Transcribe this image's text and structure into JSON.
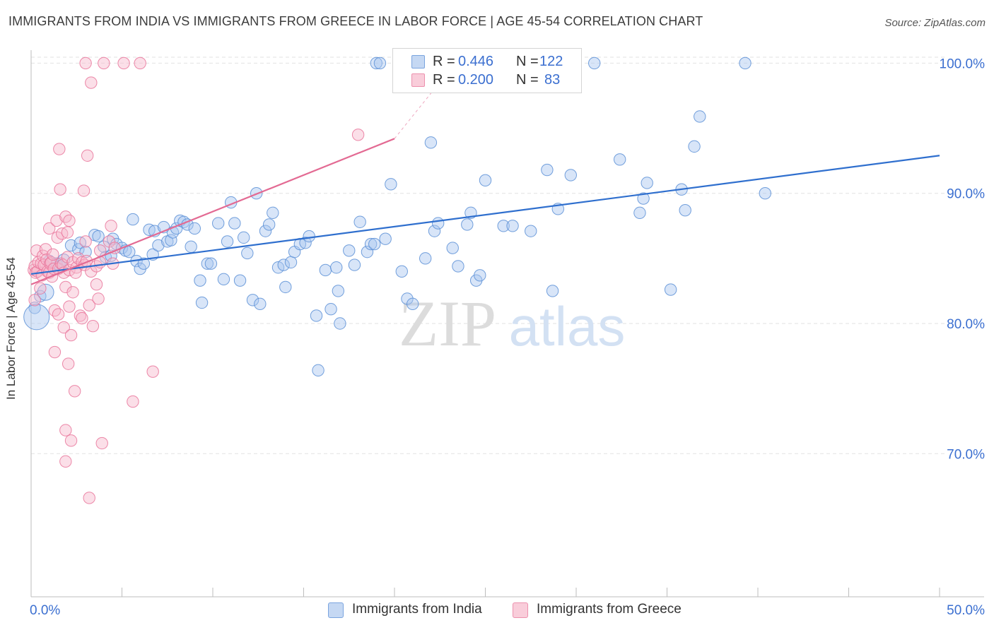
{
  "header": {
    "title": "IMMIGRANTS FROM INDIA VS IMMIGRANTS FROM GREECE IN LABOR FORCE | AGE 45-54 CORRELATION CHART",
    "source": "Source: ZipAtlas.com"
  },
  "watermark": {
    "zip": "ZIP",
    "atlas": "atlas"
  },
  "legend": {
    "india": {
      "r_label": "R =",
      "r_value": "0.446",
      "n_label": "N =",
      "n_value": "122"
    },
    "greece": {
      "r_label": "R =",
      "r_value": "0.200",
      "n_label": "N =",
      "n_value": "83"
    }
  },
  "colors": {
    "india_fill": "#a9c6ef",
    "india_stroke": "#5b8fd6",
    "india_line": "#2f6fce",
    "greece_fill": "#f6b9cc",
    "greece_stroke": "#e9749a",
    "greece_line": "#e36a93",
    "tick_text": "#3b6fd0",
    "grid": "#e2e2e2"
  },
  "chart_data": {
    "type": "scatter",
    "title": "IMMIGRANTS FROM INDIA VS IMMIGRANTS FROM GREECE IN LABOR FORCE | AGE 45-54 CORRELATION CHART",
    "xlabel": "",
    "ylabel": "In Labor Force | Age 45-54",
    "xlim": [
      0,
      50
    ],
    "ylim": [
      59,
      101
    ],
    "x_tick_labels": [
      "0.0%",
      "50.0%"
    ],
    "y_ticks": [
      70,
      80,
      90,
      100
    ],
    "y_tick_labels": [
      "70.0%",
      "80.0%",
      "90.0%",
      "100.0%"
    ],
    "grid": true,
    "series": [
      {
        "name": "Immigrants from India",
        "R": 0.446,
        "N": 122,
        "trend": {
          "x": [
            0,
            50
          ],
          "y": [
            83.8,
            92.9
          ]
        },
        "points": [
          [
            0.2,
            81.2,
            1
          ],
          [
            0.3,
            80.5,
            2.2
          ],
          [
            0.5,
            82.1,
            1
          ],
          [
            0.8,
            82.4,
            1.4
          ],
          [
            1.0,
            84.8,
            1
          ],
          [
            1.4,
            84.6,
            1
          ],
          [
            1.6,
            84.4,
            1
          ],
          [
            1.8,
            84.9,
            1
          ],
          [
            2.2,
            86.0,
            1
          ],
          [
            2.6,
            85.7,
            1
          ],
          [
            2.7,
            86.2,
            1
          ],
          [
            3.0,
            85.5,
            1
          ],
          [
            3.5,
            86.8,
            1
          ],
          [
            3.7,
            86.7,
            1
          ],
          [
            4.0,
            85.9,
            1
          ],
          [
            4.1,
            85.1,
            1
          ],
          [
            4.4,
            85.2,
            1
          ],
          [
            4.5,
            86.5,
            1
          ],
          [
            4.7,
            86.1,
            1
          ],
          [
            5.0,
            85.8,
            1
          ],
          [
            5.2,
            85.6,
            1
          ],
          [
            5.4,
            85.5,
            1
          ],
          [
            5.6,
            88.0,
            1
          ],
          [
            5.8,
            84.8,
            1
          ],
          [
            6.0,
            84.2,
            1
          ],
          [
            6.2,
            84.6,
            1
          ],
          [
            6.5,
            87.2,
            1
          ],
          [
            6.7,
            85.3,
            1
          ],
          [
            6.8,
            87.1,
            1
          ],
          [
            7.0,
            86.0,
            1
          ],
          [
            7.3,
            87.4,
            1
          ],
          [
            7.5,
            86.3,
            1
          ],
          [
            7.7,
            86.4,
            1
          ],
          [
            7.8,
            87.0,
            1
          ],
          [
            8.0,
            87.3,
            1
          ],
          [
            8.2,
            87.9,
            1
          ],
          [
            8.4,
            87.8,
            1
          ],
          [
            8.6,
            87.6,
            1
          ],
          [
            8.8,
            85.9,
            1
          ],
          [
            9.0,
            87.3,
            1
          ],
          [
            9.3,
            83.3,
            1
          ],
          [
            9.4,
            81.6,
            1
          ],
          [
            9.7,
            84.6,
            1
          ],
          [
            9.9,
            84.6,
            1
          ],
          [
            10.3,
            87.7,
            1
          ],
          [
            10.6,
            83.4,
            1
          ],
          [
            10.8,
            86.3,
            1
          ],
          [
            11.0,
            89.3,
            1
          ],
          [
            11.2,
            87.7,
            1
          ],
          [
            11.5,
            83.3,
            1
          ],
          [
            11.7,
            86.6,
            1
          ],
          [
            11.9,
            85.4,
            1
          ],
          [
            12.2,
            81.8,
            1
          ],
          [
            12.4,
            90.0,
            1
          ],
          [
            12.6,
            81.5,
            1
          ],
          [
            12.9,
            87.1,
            1
          ],
          [
            13.1,
            87.6,
            1
          ],
          [
            13.3,
            88.5,
            1
          ],
          [
            13.6,
            84.3,
            1
          ],
          [
            13.9,
            84.5,
            1
          ],
          [
            14.0,
            82.8,
            1
          ],
          [
            14.3,
            84.7,
            1
          ],
          [
            14.5,
            85.5,
            1
          ],
          [
            14.8,
            86.1,
            1
          ],
          [
            15.1,
            86.2,
            1
          ],
          [
            15.3,
            86.7,
            1
          ],
          [
            15.7,
            80.6,
            1
          ],
          [
            15.8,
            76.4,
            1
          ],
          [
            16.2,
            84.1,
            1
          ],
          [
            16.5,
            81.1,
            1
          ],
          [
            16.8,
            84.3,
            1
          ],
          [
            16.9,
            82.5,
            1
          ],
          [
            17.0,
            80.0,
            1
          ],
          [
            17.5,
            85.6,
            1
          ],
          [
            17.8,
            84.5,
            1
          ],
          [
            18.1,
            87.8,
            1
          ],
          [
            18.5,
            85.5,
            1
          ],
          [
            18.7,
            86.1,
            1
          ],
          [
            18.9,
            86.1,
            1
          ],
          [
            19.0,
            100.0,
            1
          ],
          [
            19.2,
            100.0,
            1
          ],
          [
            19.5,
            86.5,
            1
          ],
          [
            19.8,
            90.7,
            1
          ],
          [
            20.4,
            84.0,
            1
          ],
          [
            20.7,
            81.9,
            1
          ],
          [
            21.0,
            81.5,
            1
          ],
          [
            21.7,
            85.0,
            1
          ],
          [
            22.0,
            93.9,
            1
          ],
          [
            22.2,
            87.1,
            1
          ],
          [
            22.4,
            87.7,
            1
          ],
          [
            23.2,
            85.8,
            1
          ],
          [
            23.5,
            84.4,
            1
          ],
          [
            24.0,
            87.6,
            1
          ],
          [
            24.2,
            88.5,
            1
          ],
          [
            24.5,
            83.3,
            1
          ],
          [
            24.7,
            83.7,
            1
          ],
          [
            25.0,
            91.0,
            1
          ],
          [
            26.0,
            87.5,
            1
          ],
          [
            26.5,
            87.5,
            1
          ],
          [
            27.5,
            87.1,
            1
          ],
          [
            28.4,
            91.8,
            1
          ],
          [
            28.7,
            82.5,
            1
          ],
          [
            29.0,
            88.8,
            1
          ],
          [
            29.7,
            91.4,
            1
          ],
          [
            31.0,
            100.0,
            1
          ],
          [
            32.4,
            92.6,
            1
          ],
          [
            33.5,
            88.5,
            1
          ],
          [
            33.7,
            89.6,
            1
          ],
          [
            33.9,
            90.8,
            1
          ],
          [
            35.2,
            82.6,
            1
          ],
          [
            35.8,
            90.3,
            1
          ],
          [
            36.0,
            88.7,
            1
          ],
          [
            36.5,
            93.6,
            1
          ],
          [
            36.8,
            95.9,
            1
          ],
          [
            39.3,
            100.0,
            1
          ],
          [
            40.4,
            90.0,
            1
          ]
        ]
      },
      {
        "name": "Immigrants from Greece",
        "R": 0.2,
        "N": 83,
        "trend": {
          "x": [
            0,
            20
          ],
          "y": [
            83.0,
            94.2
          ]
        },
        "trend_extension": {
          "x": [
            20,
            21
          ],
          "y": [
            94.2,
            100.0
          ]
        },
        "points": [
          [
            0.15,
            84.1,
            1
          ],
          [
            0.2,
            84.4,
            1
          ],
          [
            0.2,
            81.8,
            1
          ],
          [
            0.25,
            83.9,
            1
          ],
          [
            0.3,
            85.6,
            1
          ],
          [
            0.35,
            84.0,
            1
          ],
          [
            0.4,
            84.7,
            1
          ],
          [
            0.5,
            82.7,
            1
          ],
          [
            0.55,
            84.6,
            1
          ],
          [
            0.6,
            83.7,
            1
          ],
          [
            0.65,
            85.2,
            1
          ],
          [
            0.7,
            84.5,
            1
          ],
          [
            0.8,
            85.7,
            1
          ],
          [
            0.85,
            84.9,
            1
          ],
          [
            0.9,
            84.0,
            1
          ],
          [
            1.0,
            83.9,
            1
          ],
          [
            1.0,
            87.3,
            1
          ],
          [
            1.05,
            84.6,
            1
          ],
          [
            1.1,
            84.7,
            1
          ],
          [
            1.15,
            83.6,
            1
          ],
          [
            1.2,
            85.3,
            1
          ],
          [
            1.25,
            84.2,
            1
          ],
          [
            1.3,
            81.0,
            1
          ],
          [
            1.3,
            77.8,
            1
          ],
          [
            1.4,
            87.9,
            1
          ],
          [
            1.45,
            86.6,
            1
          ],
          [
            1.5,
            84.2,
            1
          ],
          [
            1.5,
            80.7,
            1
          ],
          [
            1.55,
            93.4,
            1
          ],
          [
            1.6,
            90.3,
            1
          ],
          [
            1.65,
            84.6,
            1
          ],
          [
            1.7,
            86.9,
            1
          ],
          [
            1.75,
            84.5,
            1
          ],
          [
            1.8,
            83.9,
            1
          ],
          [
            1.8,
            79.7,
            1
          ],
          [
            1.9,
            88.2,
            1
          ],
          [
            1.9,
            82.8,
            1
          ],
          [
            1.9,
            71.8,
            1
          ],
          [
            1.9,
            69.4,
            1
          ],
          [
            2.0,
            87.0,
            1
          ],
          [
            2.0,
            85.1,
            1
          ],
          [
            2.05,
            76.9,
            1
          ],
          [
            2.1,
            87.9,
            1
          ],
          [
            2.1,
            84.1,
            1
          ],
          [
            2.1,
            81.3,
            1
          ],
          [
            2.2,
            79.1,
            1
          ],
          [
            2.2,
            71.0,
            1
          ],
          [
            2.3,
            84.7,
            1
          ],
          [
            2.3,
            82.4,
            1
          ],
          [
            2.4,
            74.8,
            1
          ],
          [
            2.5,
            84.3,
            1
          ],
          [
            2.6,
            85.0,
            1
          ],
          [
            2.7,
            80.6,
            1
          ],
          [
            2.8,
            80.4,
            1
          ],
          [
            2.8,
            84.7,
            1
          ],
          [
            2.9,
            90.2,
            1
          ],
          [
            2.95,
            84.5,
            1
          ],
          [
            3.0,
            86.3,
            1
          ],
          [
            3.0,
            100.0,
            1
          ],
          [
            3.05,
            84.8,
            1
          ],
          [
            3.1,
            92.9,
            1
          ],
          [
            3.2,
            81.4,
            1
          ],
          [
            3.2,
            66.6,
            1
          ],
          [
            3.3,
            98.5,
            1
          ],
          [
            3.3,
            84.0,
            1
          ],
          [
            3.4,
            79.8,
            1
          ],
          [
            3.6,
            83.0,
            1
          ],
          [
            3.6,
            84.4,
            1
          ],
          [
            3.7,
            81.9,
            1
          ],
          [
            3.8,
            84.7,
            1
          ],
          [
            3.8,
            85.6,
            1
          ],
          [
            3.9,
            70.8,
            1
          ],
          [
            4.0,
            100.0,
            1
          ],
          [
            4.3,
            86.3,
            1
          ],
          [
            4.4,
            87.5,
            1
          ],
          [
            4.6,
            85.8,
            1
          ],
          [
            4.5,
            84.6,
            1
          ],
          [
            5.1,
            100.0,
            1
          ],
          [
            5.6,
            74.0,
            1
          ],
          [
            6.0,
            100.0,
            1
          ],
          [
            6.7,
            76.3,
            1
          ],
          [
            18.0,
            94.5,
            1
          ],
          [
            2.45,
            83.9,
            1
          ]
        ]
      }
    ]
  },
  "bottom_legend": {
    "india": "Immigrants from India",
    "greece": "Immigrants from Greece"
  }
}
